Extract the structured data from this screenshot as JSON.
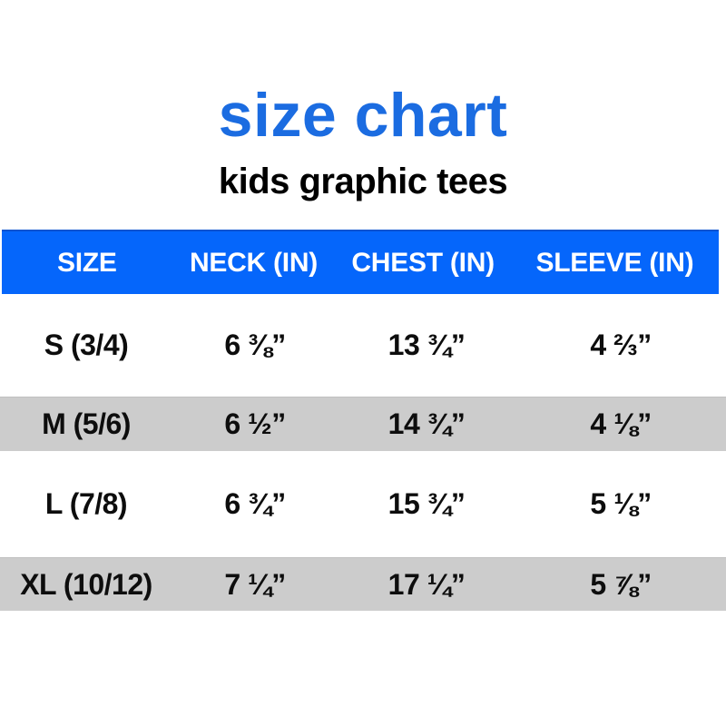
{
  "page": {
    "title": "size chart",
    "subtitle": "kids graphic tees"
  },
  "colors": {
    "title_blue": "#1b6ce1",
    "header_blue": "#0566fb",
    "header_edge_blue": "#0b53d0",
    "header_text": "#ffffff",
    "shaded_row_gray": "#cccccc",
    "shaded_row_edge": "#c0c0c0",
    "body_text": "#0d0d0d",
    "background": "#ffffff"
  },
  "chart_data": {
    "type": "table",
    "title": "size chart",
    "subtitle": "kids graphic tees",
    "columns": [
      "SIZE",
      "NECK (IN)",
      "CHEST (IN)",
      "SLEEVE (IN)"
    ],
    "rows": [
      [
        "S (3/4)",
        "6 ⅜”",
        "13 ¾”",
        "4 ⅔”"
      ],
      [
        "M (5/6)",
        "6 ½”",
        "14 ¾”",
        "4 ⅛”"
      ],
      [
        "L (7/8)",
        "6 ¾”",
        "15 ¾”",
        "5 ⅛”"
      ],
      [
        "XL (10/12)",
        "7 ¼”",
        "17 ¼”",
        "5 ⅞”"
      ]
    ],
    "units": "inches",
    "layout": {
      "header_background": "#0566fb",
      "shaded_row_indices": [
        1,
        3
      ],
      "shaded_row_background": "#cccccc",
      "grid": "off",
      "column_alignment": "center"
    }
  }
}
